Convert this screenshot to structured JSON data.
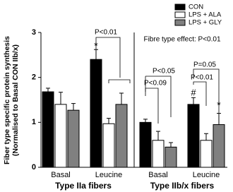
{
  "chart_data": {
    "type": "bar",
    "ylabel": "Fiber type specific protein synthesis",
    "ylabel2": "(Normalised to Basal CON IIb/x)",
    "ylim": [
      0,
      3
    ],
    "yticks": [
      0,
      1,
      2,
      3
    ],
    "groups": [
      {
        "label": "Type IIa fibers",
        "categories": [
          "Basal",
          "Leucine"
        ]
      },
      {
        "label": "Type IIb/x fibers",
        "categories": [
          "Basal",
          "Leucine"
        ]
      }
    ],
    "series": [
      {
        "name": "CON",
        "color": "#000000",
        "values": [
          1.68,
          2.4,
          1.0,
          1.4
        ],
        "errors": [
          0.08,
          0.22,
          0.07,
          0.15
        ]
      },
      {
        "name": "LPS + ALA",
        "color": "#ffffff",
        "values": [
          1.4,
          0.97,
          0.6,
          0.6
        ],
        "errors": [
          0.27,
          0.12,
          0.2,
          0.15
        ]
      },
      {
        "name": "LPS + GLY",
        "color": "#808080",
        "values": [
          1.27,
          1.4,
          0.45,
          0.95
        ],
        "errors": [
          0.15,
          0.25,
          0.1,
          0.25
        ]
      }
    ],
    "annotations": [
      "*",
      "P<0.01",
      "Fibre type effect: P<0.01",
      "P<0.09",
      "P<0.05",
      "#",
      "P<0.01",
      "P=0.05",
      "*"
    ]
  }
}
